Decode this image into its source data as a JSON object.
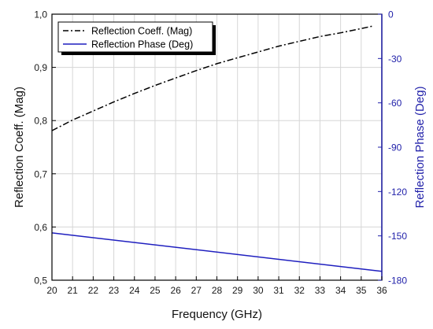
{
  "chart_data": {
    "type": "line",
    "xlabel": "Frequency (GHz)",
    "ylabel_left": "Reflection Coeff. (Mag)",
    "ylabel_right": "Reflection Phase (Deg)",
    "x_ticks": [
      "20",
      "21",
      "22",
      "23",
      "24",
      "25",
      "26",
      "27",
      "28",
      "29",
      "30",
      "31",
      "32",
      "33",
      "34",
      "35",
      "36"
    ],
    "y_left_ticks": [
      "0,5",
      "0,6",
      "0,7",
      "0,8",
      "0,9",
      "1,0"
    ],
    "y_right_ticks": [
      "-180",
      "-150",
      "-120",
      "-90",
      "-60",
      "-30",
      "0"
    ],
    "xlim": [
      20,
      36
    ],
    "ylim_left": [
      0.5,
      1.0
    ],
    "ylim_right": [
      -180,
      0
    ],
    "grid": true,
    "legend_position": "top-left",
    "series": [
      {
        "name": "Reflection Coeff. (Mag)",
        "axis": "left",
        "color": "#000000",
        "style": "dash-dot",
        "x": [
          20,
          21,
          22,
          23,
          24,
          25,
          26,
          27,
          28,
          29,
          30,
          31,
          32,
          33,
          34,
          35,
          35.6
        ],
        "y": [
          0.781,
          0.801,
          0.818,
          0.835,
          0.851,
          0.866,
          0.88,
          0.894,
          0.907,
          0.918,
          0.929,
          0.94,
          0.949,
          0.958,
          0.965,
          0.973,
          0.978
        ]
      },
      {
        "name": "Reflection Phase (Deg)",
        "axis": "right",
        "color": "#1f1fbf",
        "style": "solid",
        "x": [
          20,
          36
        ],
        "y": [
          -148,
          -174
        ]
      }
    ]
  }
}
